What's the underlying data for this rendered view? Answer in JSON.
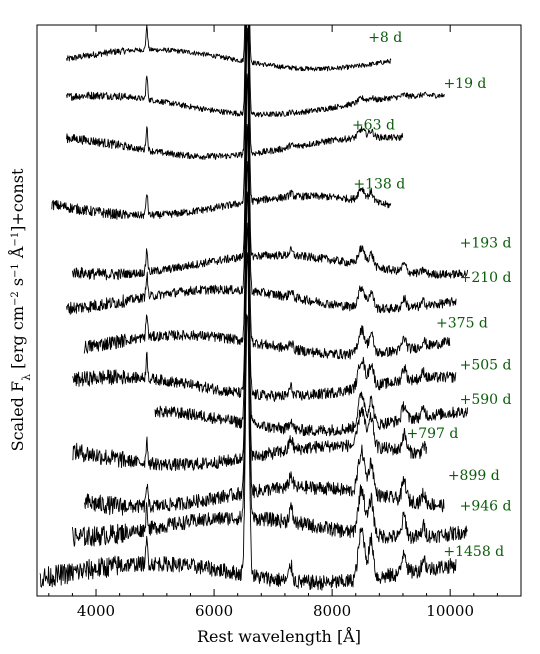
{
  "chart_data": {
    "type": "line",
    "title": "",
    "xlabel": "Rest wavelength [Å]",
    "ylabel_parts": {
      "pre": "Scaled F",
      "sub": "λ",
      "mid1": " [erg cm",
      "exp1": "−2",
      "mid2": " s",
      "exp2": "−1",
      "mid3": " Å",
      "exp3": "−1",
      "post": "]+const"
    },
    "xlim": [
      3000,
      11200
    ],
    "x_ticks": [
      4000,
      6000,
      8000,
      10000
    ],
    "x_tick_labels": [
      "4000",
      "6000",
      "8000",
      "10000"
    ],
    "y_ticks_shown": false,
    "grid": false,
    "series": [
      {
        "name": "+8 d",
        "xmin": 3500,
        "xmax": 9000,
        "offset": 28.2,
        "label_x": 8900
      },
      {
        "name": "+19 d",
        "xmin": 3500,
        "xmax": 9900,
        "offset": 25.8,
        "label_x": 10250
      },
      {
        "name": "+63 d",
        "xmin": 3500,
        "xmax": 9200,
        "offset": 23.6,
        "label_x": 8700
      },
      {
        "name": "+138 d",
        "xmin": 3250,
        "xmax": 9000,
        "offset": 20.5,
        "label_x": 8800
      },
      {
        "name": "+193 d",
        "xmin": 3600,
        "xmax": 10300,
        "offset": 17.4,
        "label_x": 10600
      },
      {
        "name": "+210 d",
        "xmin": 3500,
        "xmax": 10100,
        "offset": 15.6,
        "label_x": 10600
      },
      {
        "name": "+375 d",
        "xmin": 3800,
        "xmax": 10000,
        "offset": 13.2,
        "label_x": 10200
      },
      {
        "name": "+505 d",
        "xmin": 3600,
        "xmax": 10100,
        "offset": 11.0,
        "label_x": 10600
      },
      {
        "name": "+590 d",
        "xmin": 5000,
        "xmax": 10300,
        "offset": 9.2,
        "label_x": 10600
      },
      {
        "name": "+797 d",
        "xmin": 3600,
        "xmax": 9600,
        "offset": 7.4,
        "label_x": 9700
      },
      {
        "name": "+899 d",
        "xmin": 3800,
        "xmax": 9900,
        "offset": 5.2,
        "label_x": 10400
      },
      {
        "name": "+946 d",
        "xmin": 3600,
        "xmax": 10300,
        "offset": 3.6,
        "label_x": 10600
      },
      {
        "name": "+1458 d",
        "xmin": 3050,
        "xmax": 10100,
        "offset": 1.2,
        "label_x": 10400
      }
    ]
  }
}
